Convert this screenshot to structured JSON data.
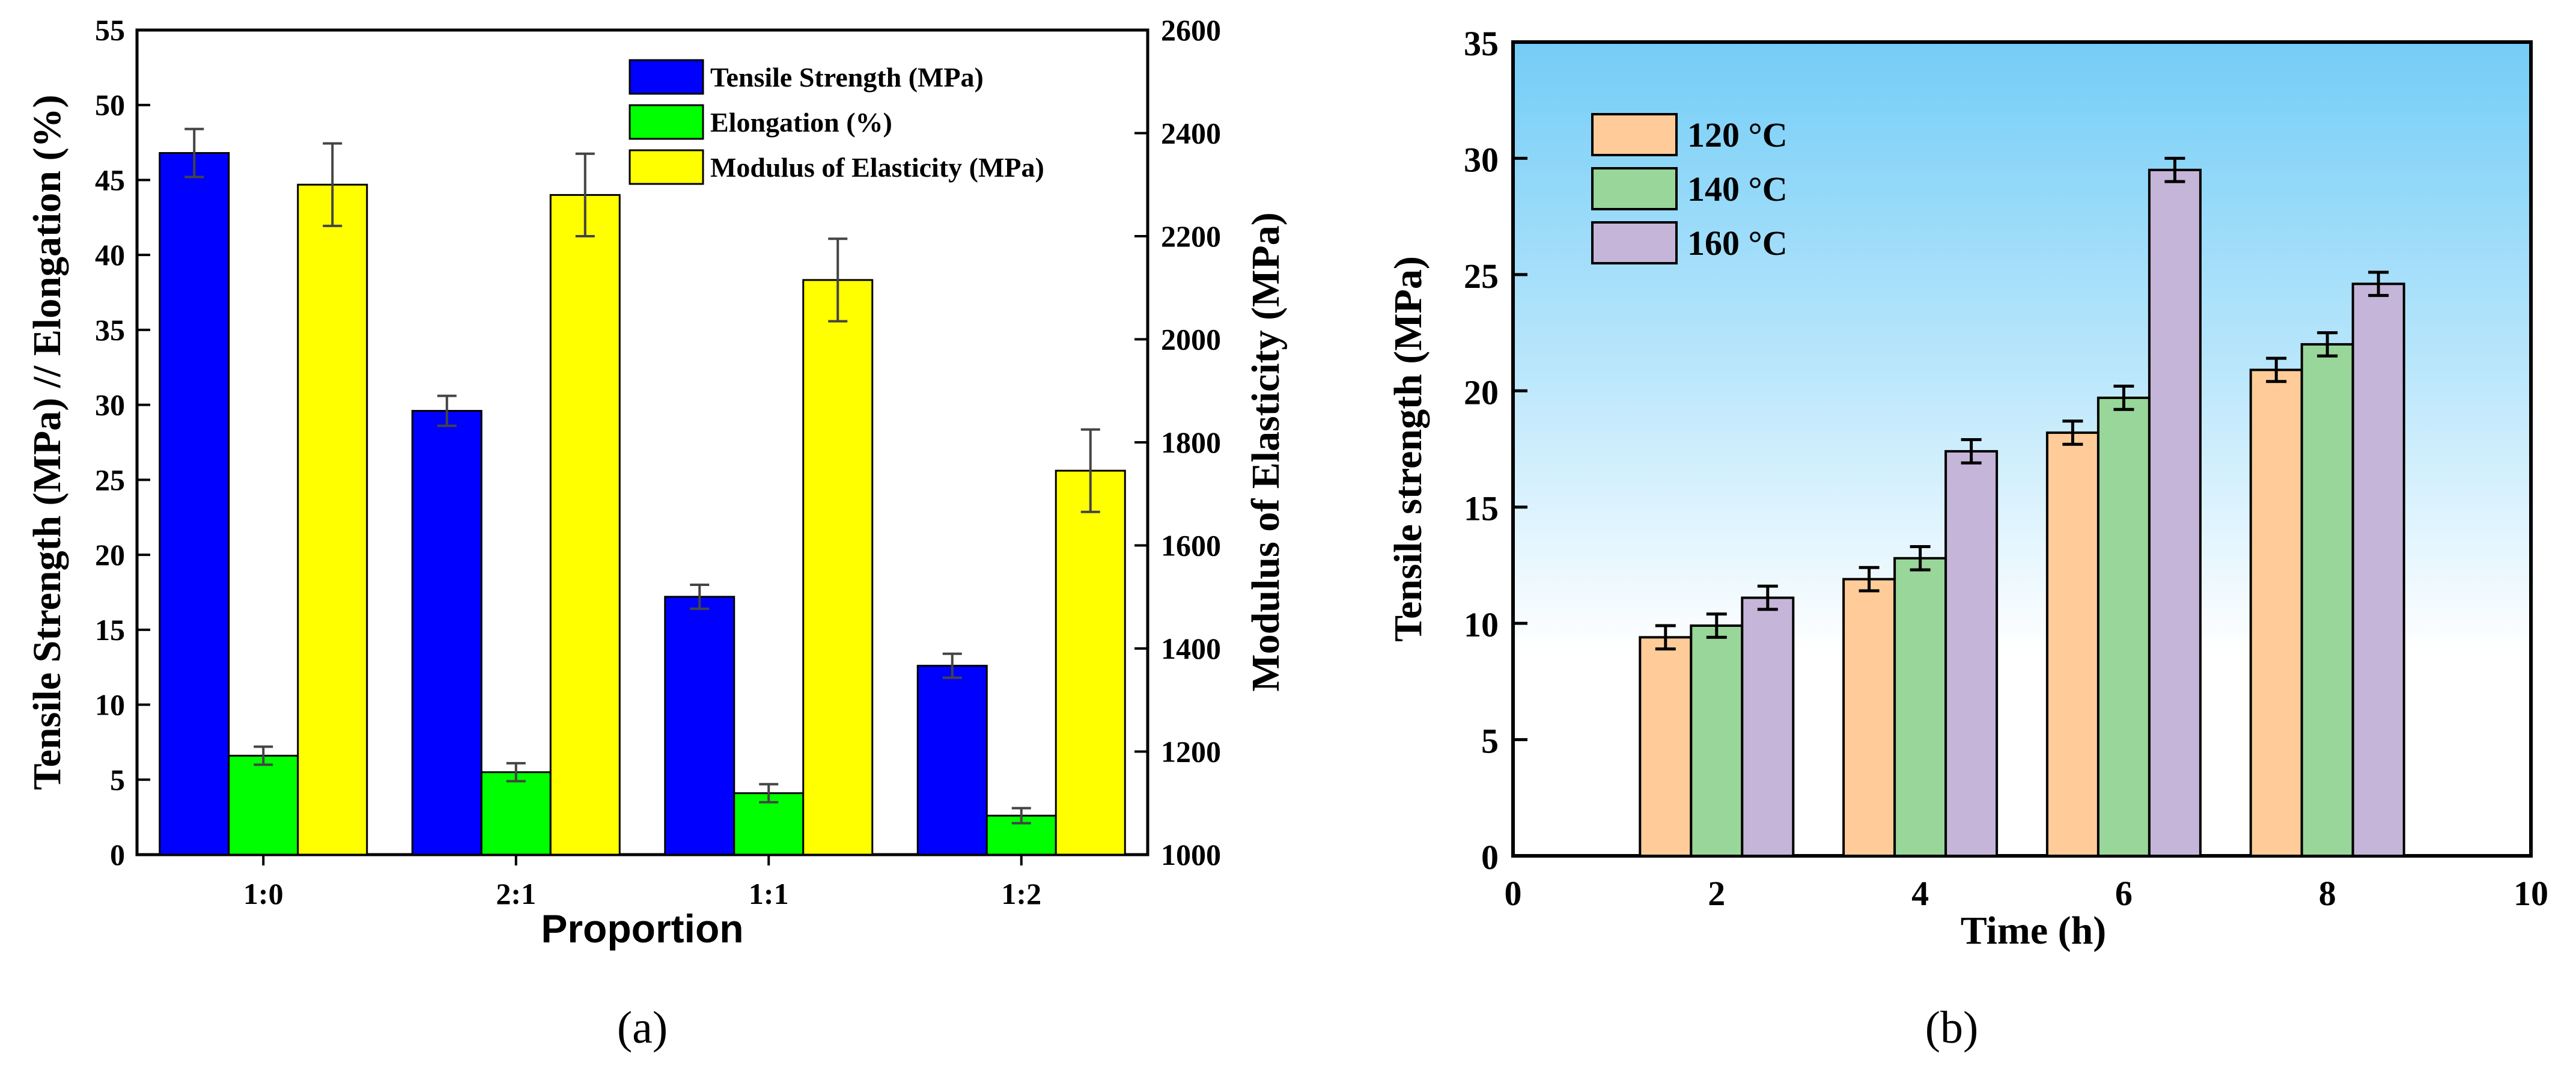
{
  "chart_data": [
    {
      "type": "bar",
      "panel_label": "a",
      "xlabel": "Proportion",
      "ylabel_left": "Tensile Strength (MPa) // Elongation (%)",
      "ylabel_right": "Modulus of Elasticity (MPa)",
      "categories": [
        "1:0",
        "2:1",
        "1:1",
        "1:2"
      ],
      "ylim_left": [
        0,
        55
      ],
      "yticks_left": [
        0,
        5,
        10,
        15,
        20,
        25,
        30,
        35,
        40,
        45,
        50,
        55
      ],
      "ylim_right": [
        1000,
        2600
      ],
      "yticks_right": [
        1000,
        1200,
        1400,
        1600,
        1800,
        2000,
        2200,
        2400,
        2600
      ],
      "legend_position": "top-right",
      "series": [
        {
          "name": "Tensile Strength (MPa)",
          "axis": "left",
          "color": "#0000ff",
          "values": [
            46.8,
            29.6,
            17.2,
            12.6
          ],
          "errors": [
            1.6,
            1.0,
            0.8,
            0.8
          ]
        },
        {
          "name": "Elongation (%)",
          "axis": "left",
          "color": "#00ff00",
          "values": [
            6.6,
            5.5,
            4.1,
            2.6
          ],
          "errors": [
            0.6,
            0.6,
            0.6,
            0.5
          ]
        },
        {
          "name": "Modulus of Elasticity (MPa)",
          "axis": "right",
          "color": "#ffff00",
          "values": [
            2300,
            2280,
            2115,
            1745
          ],
          "errors": [
            80,
            80,
            80,
            80
          ]
        }
      ]
    },
    {
      "type": "bar",
      "panel_label": "b",
      "xlabel": "Time (h)",
      "ylabel": "Tensile strength (MPa)",
      "x": [
        2,
        4,
        6,
        8
      ],
      "xlim": [
        0,
        10
      ],
      "xticks": [
        0,
        2,
        4,
        6,
        8,
        10
      ],
      "ylim": [
        0,
        35
      ],
      "yticks": [
        0,
        5,
        10,
        15,
        20,
        25,
        30,
        35
      ],
      "legend_position": "top-left",
      "series": [
        {
          "name": "120 °C",
          "color": "#ffcc99",
          "values": [
            9.4,
            11.9,
            18.2,
            20.9
          ],
          "errors": [
            0.5,
            0.5,
            0.5,
            0.5
          ]
        },
        {
          "name": "140 °C",
          "color": "#99d699",
          "values": [
            9.9,
            12.8,
            19.7,
            22.0
          ],
          "errors": [
            0.5,
            0.5,
            0.5,
            0.5
          ]
        },
        {
          "name": "160 °C",
          "color": "#c5b5d8",
          "values": [
            11.1,
            17.4,
            29.5,
            24.6
          ],
          "errors": [
            0.5,
            0.5,
            0.5,
            0.5
          ]
        }
      ]
    }
  ],
  "captions": {
    "a": "(a)",
    "b": "(b)"
  }
}
